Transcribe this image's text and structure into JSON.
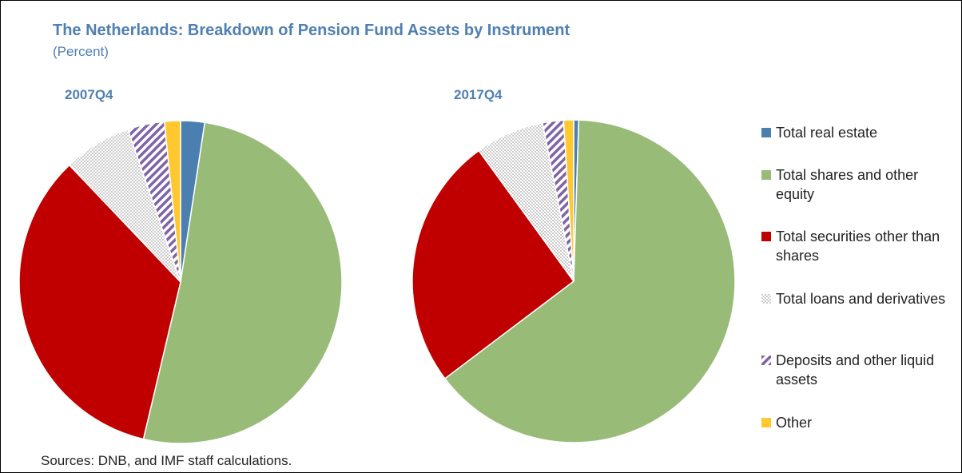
{
  "title": "The Netherlands: Breakdown of Pension Fund Assets by Instrument",
  "subtitle": "(Percent)",
  "source": "Sources: DNB, and IMF staff calculations.",
  "chart_data": [
    {
      "type": "pie",
      "title": "2007Q4",
      "categories": [
        "Total real estate",
        "Total shares and other equity",
        "Total securities other than shares",
        "Total loans and derivatives",
        "Deposits and other liquid assets",
        "Other"
      ],
      "values": [
        2.4,
        51.3,
        34.2,
        6.8,
        3.7,
        1.6
      ],
      "colors": [
        "#4a7fb0",
        "#98bb78",
        "#c00000",
        "#a6a6a6",
        "#7f63a8",
        "#ffc82e"
      ],
      "patterns": [
        null,
        null,
        null,
        "dots",
        "stripes",
        null
      ]
    },
    {
      "type": "pie",
      "title": "2017Q4",
      "categories": [
        "Total real estate",
        "Total shares and other equity",
        "Total securities other than shares",
        "Total loans and derivatives",
        "Deposits and other liquid assets",
        "Other"
      ],
      "values": [
        0.5,
        64.2,
        25.3,
        6.9,
        2.1,
        1.0
      ],
      "colors": [
        "#4a7fb0",
        "#98bb78",
        "#c00000",
        "#a6a6a6",
        "#7f63a8",
        "#ffc82e"
      ],
      "patterns": [
        null,
        null,
        null,
        "dots",
        "stripes",
        null
      ]
    }
  ]
}
